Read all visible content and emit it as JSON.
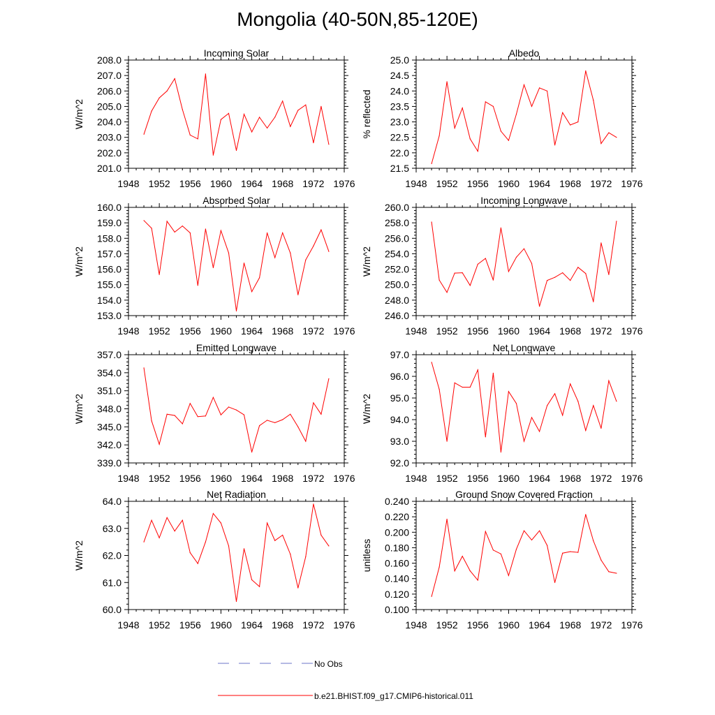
{
  "title": "Mongolia (40-50N,85-120E)",
  "colors": {
    "model": "#ff0000",
    "obs": "#6b74c8",
    "axis": "#000000"
  },
  "legend": [
    {
      "label": "No Obs",
      "style": "dashed",
      "color": "#6b74c8"
    },
    {
      "label": "b.e21.BHIST.f09_g17.CMIP6-historical.011",
      "style": "solid",
      "color": "#ff0000"
    }
  ],
  "chart_data": [
    {
      "type": "line",
      "title": "Incoming Solar",
      "ylabel": "W/m^2",
      "xlim": [
        1948,
        1976
      ],
      "ylim": [
        201.0,
        208.0
      ],
      "xticks": [
        "1948",
        "1952",
        "1956",
        "1960",
        "1964",
        "1968",
        "1972",
        "1976"
      ],
      "yticks": [
        "201.0",
        "202.0",
        "203.0",
        "204.0",
        "205.0",
        "206.0",
        "207.0",
        "208.0"
      ],
      "x": [
        1950,
        1951,
        1952,
        1953,
        1954,
        1955,
        1956,
        1957,
        1958,
        1959,
        1960,
        1961,
        1962,
        1963,
        1964,
        1965,
        1966,
        1967,
        1968,
        1969,
        1970,
        1971,
        1972,
        1973,
        1974
      ],
      "series": [
        {
          "name": "b.e21.BHIST.f09_g17.CMIP6-historical.011",
          "values": [
            203.2,
            204.7,
            205.55,
            206.0,
            206.8,
            204.8,
            203.15,
            202.9,
            207.1,
            201.85,
            204.15,
            204.55,
            202.15,
            204.5,
            203.35,
            204.3,
            203.6,
            204.3,
            205.35,
            203.7,
            204.75,
            205.1,
            202.65,
            205.0,
            202.55
          ]
        }
      ]
    },
    {
      "type": "line",
      "title": "Albedo",
      "ylabel": "% reflected",
      "xlim": [
        1948,
        1976
      ],
      "ylim": [
        21.5,
        25.0
      ],
      "xticks": [
        "1948",
        "1952",
        "1956",
        "1960",
        "1964",
        "1968",
        "1972",
        "1976"
      ],
      "yticks": [
        "21.5",
        "22.0",
        "22.5",
        "23.0",
        "23.5",
        "24.0",
        "24.5",
        "25.0"
      ],
      "x": [
        1950,
        1951,
        1952,
        1953,
        1954,
        1955,
        1956,
        1957,
        1958,
        1959,
        1960,
        1961,
        1962,
        1963,
        1964,
        1965,
        1966,
        1967,
        1968,
        1969,
        1970,
        1971,
        1972,
        1973,
        1974
      ],
      "series": [
        {
          "name": "b.e21.BHIST.f09_g17.CMIP6-historical.011",
          "values": [
            21.65,
            22.55,
            24.3,
            22.8,
            23.45,
            22.45,
            22.05,
            23.65,
            23.5,
            22.7,
            22.4,
            23.25,
            24.2,
            23.5,
            24.1,
            24.0,
            22.25,
            23.3,
            22.9,
            23.0,
            24.65,
            23.7,
            22.3,
            22.65,
            22.5
          ]
        }
      ]
    },
    {
      "type": "line",
      "title": "Absorbed Solar",
      "ylabel": "W/m^2",
      "xlim": [
        1948,
        1976
      ],
      "ylim": [
        153.0,
        160.0
      ],
      "xticks": [
        "1948",
        "1952",
        "1956",
        "1960",
        "1964",
        "1968",
        "1972",
        "1976"
      ],
      "yticks": [
        "153.0",
        "154.0",
        "155.0",
        "156.0",
        "157.0",
        "158.0",
        "159.0",
        "160.0"
      ],
      "x": [
        1950,
        1951,
        1952,
        1953,
        1954,
        1955,
        1956,
        1957,
        1958,
        1959,
        1960,
        1961,
        1962,
        1963,
        1964,
        1965,
        1966,
        1967,
        1968,
        1969,
        1970,
        1971,
        1972,
        1973,
        1974
      ],
      "series": [
        {
          "name": "b.e21.BHIST.f09_g17.CMIP6-historical.011",
          "values": [
            159.15,
            158.65,
            155.65,
            159.1,
            158.4,
            158.8,
            158.35,
            154.95,
            158.6,
            156.1,
            158.5,
            157.05,
            153.3,
            156.4,
            154.55,
            155.45,
            158.35,
            156.75,
            158.35,
            157.05,
            154.35,
            156.6,
            157.5,
            158.55,
            157.15
          ]
        }
      ]
    },
    {
      "type": "line",
      "title": "Incoming Longwave",
      "ylabel": "W/m^2",
      "xlim": [
        1948,
        1976
      ],
      "ylim": [
        246.0,
        260.0
      ],
      "xticks": [
        "1948",
        "1952",
        "1956",
        "1960",
        "1964",
        "1968",
        "1972",
        "1976"
      ],
      "yticks": [
        "246.0",
        "248.0",
        "250.0",
        "252.0",
        "254.0",
        "256.0",
        "258.0",
        "260.0"
      ],
      "x": [
        1950,
        1951,
        1952,
        1953,
        1954,
        1955,
        1956,
        1957,
        1958,
        1959,
        1960,
        1961,
        1962,
        1963,
        1964,
        1965,
        1966,
        1967,
        1968,
        1969,
        1970,
        1971,
        1972,
        1973,
        1974
      ],
      "series": [
        {
          "name": "b.e21.BHIST.f09_g17.CMIP6-historical.011",
          "values": [
            258.1,
            250.6,
            249.0,
            251.5,
            251.55,
            249.9,
            252.65,
            253.4,
            250.6,
            257.35,
            251.7,
            253.55,
            254.65,
            252.75,
            247.2,
            250.55,
            250.95,
            251.55,
            250.55,
            252.25,
            251.45,
            247.8,
            255.4,
            251.3,
            258.2
          ]
        }
      ]
    },
    {
      "type": "line",
      "title": "Emitted Longwave",
      "ylabel": "W/m^2",
      "xlim": [
        1948,
        1976
      ],
      "ylim": [
        339.0,
        357.0
      ],
      "xticks": [
        "1948",
        "1952",
        "1956",
        "1960",
        "1964",
        "1968",
        "1972",
        "1976"
      ],
      "yticks": [
        "339.0",
        "342.0",
        "345.0",
        "348.0",
        "351.0",
        "354.0",
        "357.0"
      ],
      "x": [
        1950,
        1951,
        1952,
        1953,
        1954,
        1955,
        1956,
        1957,
        1958,
        1959,
        1960,
        1961,
        1962,
        1963,
        1964,
        1965,
        1966,
        1967,
        1968,
        1969,
        1970,
        1971,
        1972,
        1973,
        1974
      ],
      "series": [
        {
          "name": "b.e21.BHIST.f09_g17.CMIP6-historical.011",
          "values": [
            354.8,
            346.0,
            342.1,
            347.1,
            346.9,
            345.5,
            348.9,
            346.7,
            346.8,
            349.9,
            347.0,
            348.3,
            347.8,
            347.0,
            340.8,
            345.2,
            346.1,
            345.7,
            346.2,
            347.1,
            345.0,
            342.6,
            349.0,
            347.1,
            353.0
          ]
        }
      ]
    },
    {
      "type": "line",
      "title": "Net Longwave",
      "ylabel": "W/m^2",
      "xlim": [
        1948,
        1976
      ],
      "ylim": [
        92.0,
        97.0
      ],
      "xticks": [
        "1948",
        "1952",
        "1956",
        "1960",
        "1964",
        "1968",
        "1972",
        "1976"
      ],
      "yticks": [
        "92.0",
        "93.0",
        "94.0",
        "95.0",
        "96.0",
        "97.0"
      ],
      "x": [
        1950,
        1951,
        1952,
        1953,
        1954,
        1955,
        1956,
        1957,
        1958,
        1959,
        1960,
        1961,
        1962,
        1963,
        1964,
        1965,
        1966,
        1967,
        1968,
        1969,
        1970,
        1971,
        1972,
        1973,
        1974
      ],
      "series": [
        {
          "name": "b.e21.BHIST.f09_g17.CMIP6-historical.011",
          "values": [
            96.65,
            95.4,
            93.0,
            95.7,
            95.5,
            95.5,
            96.3,
            93.2,
            96.15,
            92.5,
            95.3,
            94.75,
            93.0,
            94.1,
            93.45,
            94.65,
            95.2,
            94.2,
            95.65,
            94.85,
            93.5,
            94.65,
            93.6,
            95.8,
            94.85
          ]
        }
      ]
    },
    {
      "type": "line",
      "title": "Net Radiation",
      "ylabel": "W/m^2",
      "xlim": [
        1948,
        1976
      ],
      "ylim": [
        60.0,
        64.0
      ],
      "xticks": [
        "1948",
        "1952",
        "1956",
        "1960",
        "1964",
        "1968",
        "1972",
        "1976"
      ],
      "yticks": [
        "60.0",
        "61.0",
        "62.0",
        "63.0",
        "64.0"
      ],
      "x": [
        1950,
        1951,
        1952,
        1953,
        1954,
        1955,
        1956,
        1957,
        1958,
        1959,
        1960,
        1961,
        1962,
        1963,
        1964,
        1965,
        1966,
        1967,
        1968,
        1969,
        1970,
        1971,
        1972,
        1973,
        1974
      ],
      "series": [
        {
          "name": "b.e21.BHIST.f09_g17.CMIP6-historical.011",
          "values": [
            62.5,
            63.3,
            62.65,
            63.4,
            62.9,
            63.3,
            62.1,
            61.7,
            62.5,
            63.55,
            63.2,
            62.35,
            60.3,
            62.25,
            61.1,
            60.85,
            63.2,
            62.55,
            62.75,
            62.05,
            60.8,
            61.95,
            63.9,
            62.75,
            62.35
          ]
        }
      ]
    },
    {
      "type": "line",
      "title": "Ground Snow Covered Fraction",
      "ylabel": "unitless",
      "xlim": [
        1948,
        1976
      ],
      "ylim": [
        0.1,
        0.24
      ],
      "xticks": [
        "1948",
        "1952",
        "1956",
        "1960",
        "1964",
        "1968",
        "1972",
        "1976"
      ],
      "yticks": [
        "0.100",
        "0.120",
        "0.140",
        "0.160",
        "0.180",
        "0.200",
        "0.220",
        "0.240"
      ],
      "x": [
        1950,
        1951,
        1952,
        1953,
        1954,
        1955,
        1956,
        1957,
        1958,
        1959,
        1960,
        1961,
        1962,
        1963,
        1964,
        1965,
        1966,
        1967,
        1968,
        1969,
        1970,
        1971,
        1972,
        1973,
        1974
      ],
      "series": [
        {
          "name": "b.e21.BHIST.f09_g17.CMIP6-historical.011",
          "values": [
            0.117,
            0.155,
            0.217,
            0.15,
            0.169,
            0.15,
            0.138,
            0.201,
            0.177,
            0.172,
            0.144,
            0.178,
            0.202,
            0.19,
            0.202,
            0.183,
            0.135,
            0.173,
            0.175,
            0.174,
            0.223,
            0.189,
            0.164,
            0.149,
            0.147
          ]
        }
      ]
    }
  ]
}
